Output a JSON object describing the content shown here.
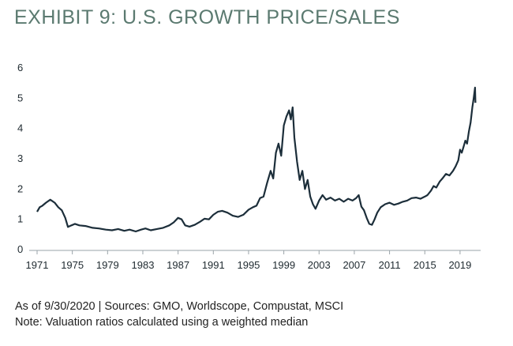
{
  "chart_data": {
    "type": "line",
    "title": "EXHIBIT 9: U.S. GROWTH PRICE/SALES",
    "xlabel": "",
    "ylabel": "",
    "xlim": [
      1971,
      2020.8
    ],
    "ylim": [
      0,
      6
    ],
    "yticks": [
      0,
      1,
      2,
      3,
      4,
      5,
      6
    ],
    "xticks": [
      1971,
      1975,
      1979,
      1983,
      1987,
      1991,
      1995,
      1999,
      2003,
      2007,
      2011,
      2015,
      2019
    ],
    "grid": false,
    "line_color": "#1c2e3a",
    "series": [
      {
        "name": "U.S. Growth Price/Sales",
        "x": [
          1971.0,
          1971.3,
          1971.6,
          1972.0,
          1972.5,
          1973.0,
          1973.4,
          1973.8,
          1974.2,
          1974.5,
          1974.9,
          1975.3,
          1975.8,
          1976.5,
          1977.3,
          1978.0,
          1978.8,
          1979.5,
          1980.2,
          1980.9,
          1981.5,
          1982.2,
          1982.8,
          1983.3,
          1983.9,
          1984.6,
          1985.3,
          1986.0,
          1986.5,
          1987.0,
          1987.4,
          1987.8,
          1988.3,
          1988.9,
          1989.5,
          1990.0,
          1990.5,
          1991.0,
          1991.5,
          1992.0,
          1992.6,
          1993.2,
          1993.8,
          1994.4,
          1995.0,
          1995.5,
          1995.9,
          1996.3,
          1996.7,
          1997.1,
          1997.5,
          1997.8,
          1998.1,
          1998.4,
          1998.7,
          1999.0,
          1999.3,
          1999.6,
          1999.8,
          2000.0,
          2000.2,
          2000.5,
          2000.8,
          2001.1,
          2001.4,
          2001.7,
          2002.0,
          2002.3,
          2002.6,
          2003.0,
          2003.4,
          2003.8,
          2004.3,
          2004.8,
          2005.3,
          2005.8,
          2006.3,
          2006.8,
          2007.2,
          2007.5,
          2007.8,
          2008.1,
          2008.4,
          2008.7,
          2009.0,
          2009.3,
          2009.6,
          2010.0,
          2010.5,
          2011.0,
          2011.5,
          2012.0,
          2012.5,
          2013.0,
          2013.5,
          2014.0,
          2014.5,
          2015.0,
          2015.3,
          2015.7,
          2016.0,
          2016.3,
          2016.7,
          2017.0,
          2017.4,
          2017.8,
          2018.2,
          2018.5,
          2018.8,
          2019.0,
          2019.2,
          2019.4,
          2019.6,
          2019.8,
          2020.0,
          2020.2,
          2020.4,
          2020.55,
          2020.7,
          2020.75
        ],
        "y": [
          1.25,
          1.4,
          1.45,
          1.55,
          1.65,
          1.55,
          1.4,
          1.3,
          1.05,
          0.75,
          0.8,
          0.85,
          0.8,
          0.78,
          0.72,
          0.7,
          0.66,
          0.64,
          0.68,
          0.62,
          0.66,
          0.6,
          0.66,
          0.7,
          0.64,
          0.68,
          0.72,
          0.8,
          0.9,
          1.05,
          1.0,
          0.8,
          0.76,
          0.82,
          0.92,
          1.02,
          1.0,
          1.15,
          1.25,
          1.28,
          1.22,
          1.12,
          1.08,
          1.15,
          1.32,
          1.4,
          1.45,
          1.7,
          1.75,
          2.2,
          2.6,
          2.35,
          3.2,
          3.5,
          3.1,
          4.1,
          4.4,
          4.6,
          4.3,
          4.7,
          3.7,
          2.9,
          2.3,
          2.6,
          2.0,
          2.3,
          1.75,
          1.5,
          1.35,
          1.62,
          1.8,
          1.65,
          1.72,
          1.62,
          1.68,
          1.58,
          1.68,
          1.62,
          1.7,
          1.8,
          1.42,
          1.3,
          1.05,
          0.85,
          0.82,
          1.0,
          1.22,
          1.4,
          1.5,
          1.55,
          1.48,
          1.52,
          1.58,
          1.62,
          1.7,
          1.72,
          1.68,
          1.75,
          1.8,
          1.95,
          2.1,
          2.05,
          2.25,
          2.35,
          2.5,
          2.45,
          2.6,
          2.75,
          2.95,
          3.3,
          3.2,
          3.4,
          3.6,
          3.5,
          3.9,
          4.2,
          4.7,
          5.0,
          5.35,
          4.85
        ]
      }
    ]
  },
  "footer": {
    "source": "As of 9/30/2020 | Sources: GMO, Worldscope, Compustat, MSCI",
    "note": "Note: Valuation ratios calculated using a weighted median"
  }
}
